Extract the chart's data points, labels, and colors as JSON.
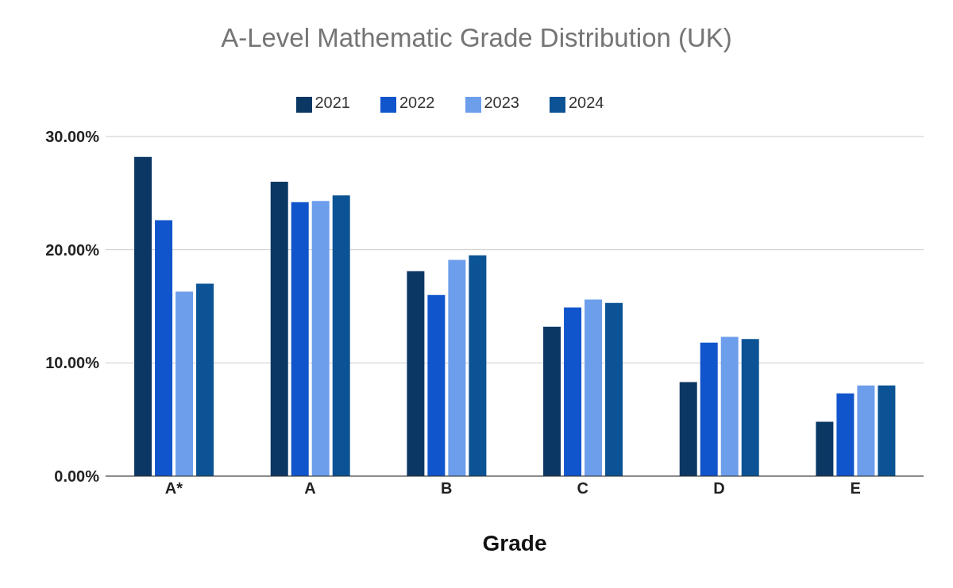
{
  "chart_data": {
    "type": "bar",
    "title": "A-Level Mathematic Grade Distribution (UK)",
    "xlabel": "Grade",
    "categories": [
      "A*",
      "A",
      "B",
      "C",
      "D",
      "E"
    ],
    "series": [
      {
        "name": "2021",
        "color": "#0b3764",
        "values": [
          28.2,
          26.0,
          18.1,
          13.2,
          8.3,
          4.8
        ]
      },
      {
        "name": "2022",
        "color": "#1155cc",
        "values": [
          22.6,
          24.2,
          16.0,
          14.9,
          11.8,
          7.3
        ]
      },
      {
        "name": "2023",
        "color": "#6d9eeb",
        "values": [
          16.3,
          24.3,
          19.1,
          15.6,
          12.3,
          8.0
        ]
      },
      {
        "name": "2024",
        "color": "#0b5394",
        "values": [
          17.0,
          24.8,
          19.5,
          15.3,
          12.1,
          8.0
        ]
      }
    ],
    "ylim": [
      0,
      30
    ],
    "yticks": [
      {
        "value": 0,
        "label": "0.00%"
      },
      {
        "value": 10,
        "label": "10.00%"
      },
      {
        "value": 20,
        "label": "20.00%"
      },
      {
        "value": 30,
        "label": "30.00%"
      }
    ],
    "grid": "y",
    "legend": "top"
  }
}
